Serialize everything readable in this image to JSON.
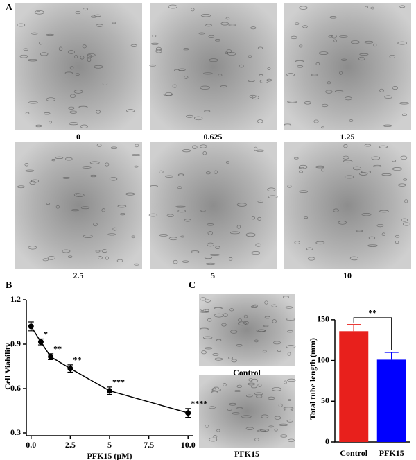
{
  "panels": {
    "a": "A",
    "b": "B",
    "c": "C"
  },
  "figure_a": {
    "captions": [
      "0",
      "0.625",
      "1.25",
      "2.5",
      "5",
      "10"
    ]
  },
  "figure_c": {
    "captions": [
      "Control",
      "PFK15"
    ]
  },
  "chart_data": [
    {
      "type": "line",
      "xlabel": "PFK15 (μM)",
      "ylabel": "Cell Viability",
      "x": [
        0,
        0.625,
        1.25,
        2.5,
        5,
        10
      ],
      "series": [
        {
          "color": "#000000",
          "values": [
            1.02,
            0.915,
            0.815,
            0.735,
            0.585,
            0.435
          ],
          "errors": [
            0.03,
            0.02,
            0.02,
            0.025,
            0.025,
            0.03
          ]
        }
      ],
      "significance": [
        null,
        "*",
        "**",
        "**",
        "***",
        "****"
      ],
      "xlim": [
        -0.3,
        10.3
      ],
      "ylim": [
        0.3,
        1.2
      ],
      "xticks": [
        {
          "value": 0,
          "label": "0.0"
        },
        2.5,
        5.0,
        7.5,
        {
          "value": 10,
          "label": "10.0"
        }
      ],
      "yticks": [
        0.3,
        0.6,
        0.9,
        1.2
      ]
    },
    {
      "type": "bar",
      "ylabel": "Total tube length (mm)",
      "categories": [
        "Control",
        "PFK15"
      ],
      "values": [
        136,
        101
      ],
      "errors": [
        8,
        9
      ],
      "colors": [
        "#e8201c",
        "#0000ff"
      ],
      "significance": "**",
      "ylim": [
        0,
        155
      ],
      "yticks": [
        0,
        50,
        100,
        150
      ]
    }
  ]
}
